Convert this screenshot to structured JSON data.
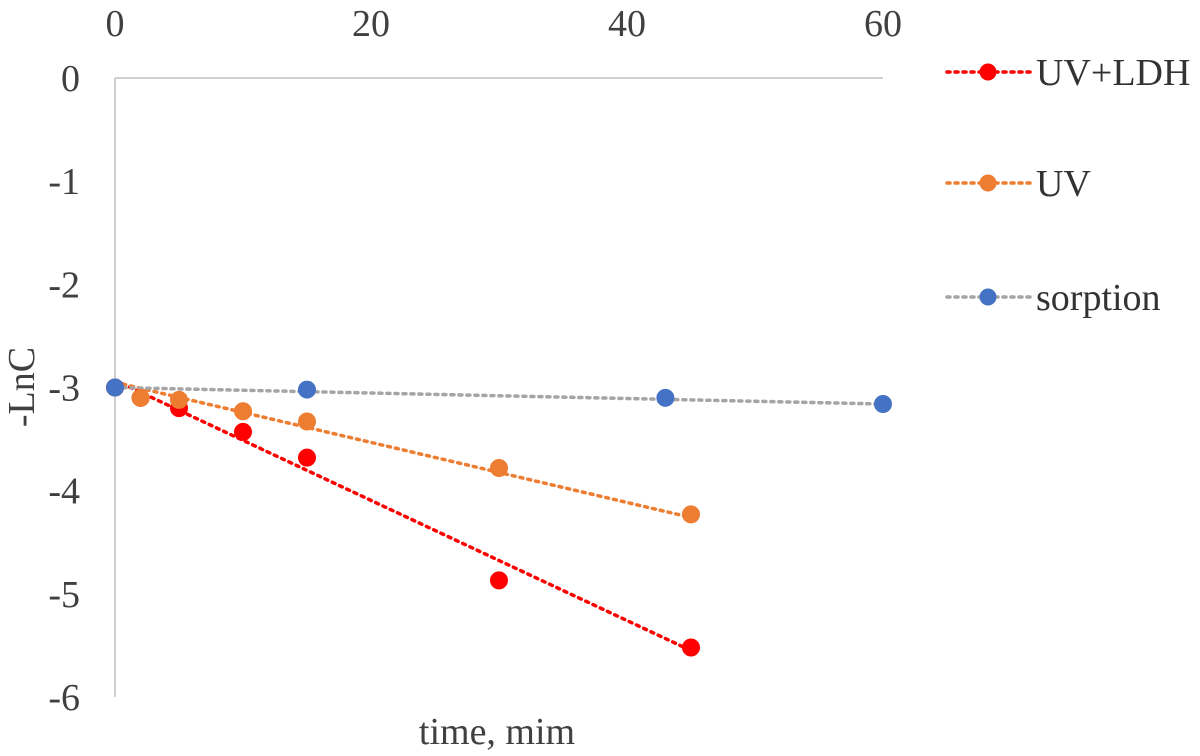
{
  "chart_data": {
    "type": "scatter",
    "xlabel": "time, mim",
    "ylabel": "-LnC",
    "xlim": [
      0,
      60
    ],
    "ylim": [
      -6,
      0
    ],
    "x_ticks": [
      0,
      20,
      40,
      60
    ],
    "y_ticks": [
      0,
      -1,
      -2,
      -3,
      -4,
      -5,
      -6
    ],
    "x_axis_position": "top",
    "grid": false,
    "legend_position": "right",
    "series": [
      {
        "name": "UV+LDH",
        "color": "#ff0000",
        "x": [
          0,
          2,
          5,
          10,
          15,
          30,
          45
        ],
        "y": [
          -3.0,
          -3.1,
          -3.2,
          -3.43,
          -3.68,
          -4.87,
          -5.52
        ],
        "trendline": {
          "x": [
            0,
            45
          ],
          "y": [
            -2.93,
            -5.55
          ]
        }
      },
      {
        "name": "UV",
        "color": "#ed7d31",
        "x": [
          0,
          2,
          5,
          10,
          15,
          30,
          45
        ],
        "y": [
          -3.0,
          -3.1,
          -3.12,
          -3.23,
          -3.33,
          -3.78,
          -4.23
        ],
        "trendline": {
          "x": [
            0,
            45
          ],
          "y": [
            -2.95,
            -4.26
          ]
        }
      },
      {
        "name": "sorption",
        "color": "#4472c4",
        "line_color": "#a5a5a5",
        "x": [
          0,
          15,
          43,
          60
        ],
        "y": [
          -3.0,
          -3.02,
          -3.1,
          -3.16
        ],
        "trendline": {
          "x": [
            0,
            60
          ],
          "y": [
            -3.0,
            -3.16
          ]
        }
      }
    ]
  }
}
